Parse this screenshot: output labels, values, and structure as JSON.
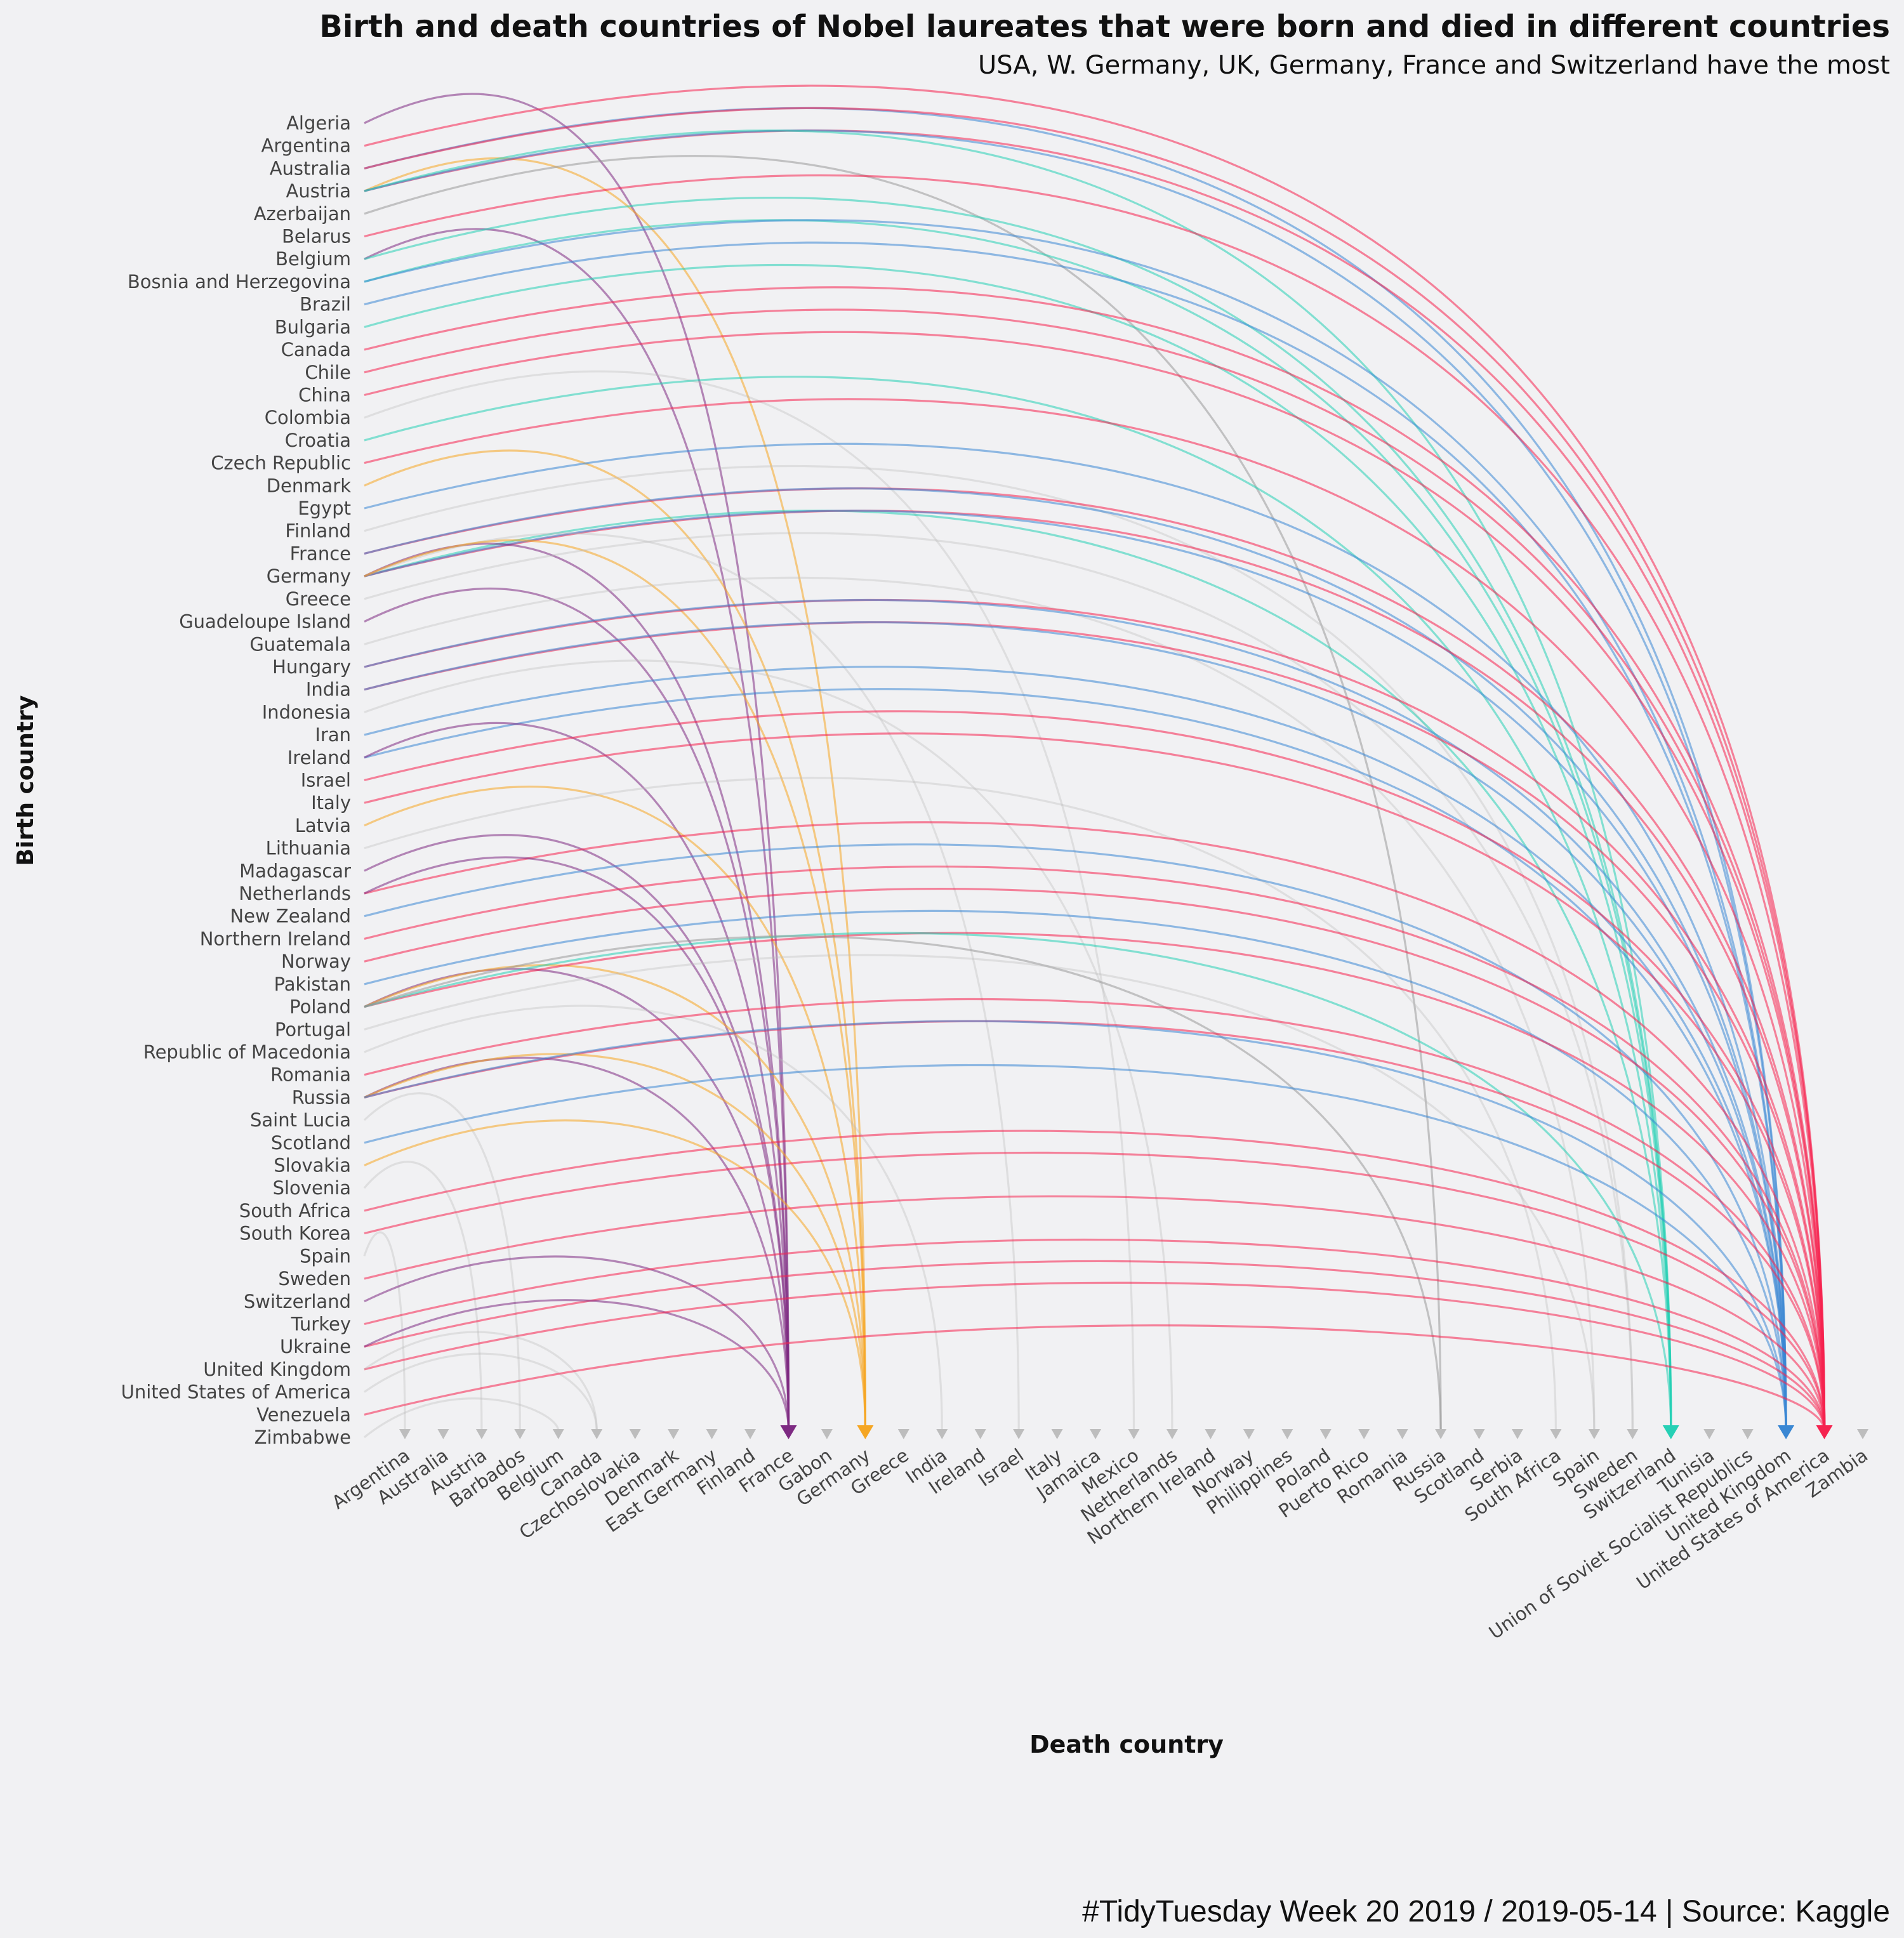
{
  "chart_data": {
    "type": "arc",
    "title": "Birth and death countries of Nobel laureates that were born and died in different countries",
    "subtitle": "USA, W. Germany, UK, Germany, France and Switzerland have the most",
    "xlabel": "Death country",
    "ylabel": "Birth country",
    "caption": "#TidyTuesday Week 20 2019 / 2019-05-14 | Source: Kaggle",
    "birth_countries": [
      "Algeria",
      "Argentina",
      "Australia",
      "Austria",
      "Azerbaijan",
      "Belarus",
      "Belgium",
      "Bosnia and Herzegovina",
      "Brazil",
      "Bulgaria",
      "Canada",
      "Chile",
      "China",
      "Colombia",
      "Croatia",
      "Czech Republic",
      "Denmark",
      "Egypt",
      "Finland",
      "France",
      "Germany",
      "Greece",
      "Guadeloupe Island",
      "Guatemala",
      "Hungary",
      "India",
      "Indonesia",
      "Iran",
      "Ireland",
      "Israel",
      "Italy",
      "Latvia",
      "Lithuania",
      "Madagascar",
      "Netherlands",
      "New Zealand",
      "Northern Ireland",
      "Norway",
      "Pakistan",
      "Poland",
      "Portugal",
      "Republic of Macedonia",
      "Romania",
      "Russia",
      "Saint Lucia",
      "Scotland",
      "Slovakia",
      "Slovenia",
      "South Africa",
      "South Korea",
      "Spain",
      "Sweden",
      "Switzerland",
      "Turkey",
      "Ukraine",
      "United Kingdom",
      "United States of America",
      "Venezuela",
      "Zimbabwe"
    ],
    "death_countries": [
      "Argentina",
      "Australia",
      "Austria",
      "Barbados",
      "Belgium",
      "Canada",
      "Czechoslovakia",
      "Denmark",
      "East Germany",
      "Finland",
      "France",
      "Gabon",
      "Germany",
      "Greece",
      "India",
      "Ireland",
      "Israel",
      "Italy",
      "Jamaica",
      "Mexico",
      "Netherlands",
      "Northern Ireland",
      "Norway",
      "Philippines",
      "Poland",
      "Puerto Rico",
      "Romania",
      "Russia",
      "Scotland",
      "Serbia",
      "South Africa",
      "Spain",
      "Sweden",
      "Switzerland",
      "Tunisia",
      "Union of Soviet Socialist Republics",
      "United Kingdom",
      "United States of America",
      "Zambia"
    ],
    "highlight_colors": {
      "United States of America": "#f5234f",
      "United Kingdom": "#3a87d3",
      "Switzerland": "#26d0b5",
      "Germany": "#f5a623",
      "France": "#7d2a82",
      "Russia": "#999999",
      "default": "#bbbbbb"
    },
    "links": [
      [
        "Algeria",
        "France"
      ],
      [
        "Argentina",
        "United States of America"
      ],
      [
        "Australia",
        "United Kingdom"
      ],
      [
        "Australia",
        "United States of America"
      ],
      [
        "Austria",
        "Germany"
      ],
      [
        "Austria",
        "United States of America"
      ],
      [
        "Austria",
        "United Kingdom"
      ],
      [
        "Austria",
        "Switzerland"
      ],
      [
        "Azerbaijan",
        "Russia"
      ],
      [
        "Belarus",
        "United States of America"
      ],
      [
        "Belgium",
        "France"
      ],
      [
        "Belgium",
        "Switzerland"
      ],
      [
        "Bosnia and Herzegovina",
        "Switzerland"
      ],
      [
        "Bosnia and Herzegovina",
        "United Kingdom"
      ],
      [
        "Brazil",
        "United Kingdom"
      ],
      [
        "Bulgaria",
        "Switzerland"
      ],
      [
        "Canada",
        "United States of America"
      ],
      [
        "Chile",
        "United States of America"
      ],
      [
        "China",
        "United States of America"
      ],
      [
        "Colombia",
        "Mexico"
      ],
      [
        "Croatia",
        "Switzerland"
      ],
      [
        "Czech Republic",
        "United States of America"
      ],
      [
        "Denmark",
        "Germany"
      ],
      [
        "Egypt",
        "United Kingdom"
      ],
      [
        "Finland",
        "Sweden"
      ],
      [
        "France",
        "United States of America"
      ],
      [
        "France",
        "United Kingdom"
      ],
      [
        "Germany",
        "Switzerland"
      ],
      [
        "Germany",
        "United States of America"
      ],
      [
        "Germany",
        "United Kingdom"
      ],
      [
        "Germany",
        "France"
      ],
      [
        "Germany",
        "Israel"
      ],
      [
        "Germany",
        "Germany"
      ],
      [
        "Greece",
        "Sweden"
      ],
      [
        "Guadeloupe Island",
        "France"
      ],
      [
        "Guatemala",
        "Spain"
      ],
      [
        "Hungary",
        "United States of America"
      ],
      [
        "Hungary",
        "United Kingdom"
      ],
      [
        "India",
        "United States of America"
      ],
      [
        "India",
        "United Kingdom"
      ],
      [
        "Indonesia",
        "Netherlands"
      ],
      [
        "Iran",
        "United Kingdom"
      ],
      [
        "Ireland",
        "United Kingdom"
      ],
      [
        "Ireland",
        "France"
      ],
      [
        "Israel",
        "United States of America"
      ],
      [
        "Italy",
        "United States of America"
      ],
      [
        "Latvia",
        "Germany"
      ],
      [
        "Lithuania",
        "South Africa"
      ],
      [
        "Madagascar",
        "France"
      ],
      [
        "Netherlands",
        "United States of America"
      ],
      [
        "Netherlands",
        "France"
      ],
      [
        "New Zealand",
        "United Kingdom"
      ],
      [
        "Northern Ireland",
        "United States of America"
      ],
      [
        "Norway",
        "United States of America"
      ],
      [
        "Pakistan",
        "United Kingdom"
      ],
      [
        "Poland",
        "France"
      ],
      [
        "Poland",
        "Germany"
      ],
      [
        "Poland",
        "United States of America"
      ],
      [
        "Poland",
        "Switzerland"
      ],
      [
        "Poland",
        "Russia"
      ],
      [
        "Portugal",
        "Spain"
      ],
      [
        "Republic of Macedonia",
        "India"
      ],
      [
        "Romania",
        "United States of America"
      ],
      [
        "Russia",
        "United States of America"
      ],
      [
        "Russia",
        "France"
      ],
      [
        "Russia",
        "Germany"
      ],
      [
        "Russia",
        "United Kingdom"
      ],
      [
        "Saint Lucia",
        "Barbados"
      ],
      [
        "Scotland",
        "United Kingdom"
      ],
      [
        "Slovakia",
        "Germany"
      ],
      [
        "Slovenia",
        "Austria"
      ],
      [
        "South Africa",
        "United States of America"
      ],
      [
        "South Korea",
        "United States of America"
      ],
      [
        "Spain",
        "Argentina"
      ],
      [
        "Sweden",
        "United States of America"
      ],
      [
        "Switzerland",
        "France"
      ],
      [
        "Turkey",
        "United States of America"
      ],
      [
        "Ukraine",
        "United States of America"
      ],
      [
        "Ukraine",
        "France"
      ],
      [
        "United Kingdom",
        "United States of America"
      ],
      [
        "United Kingdom",
        "Canada"
      ],
      [
        "United States of America",
        "Canada"
      ],
      [
        "Venezuela",
        "United States of America"
      ],
      [
        "Zimbabwe",
        "Belgium"
      ]
    ]
  }
}
